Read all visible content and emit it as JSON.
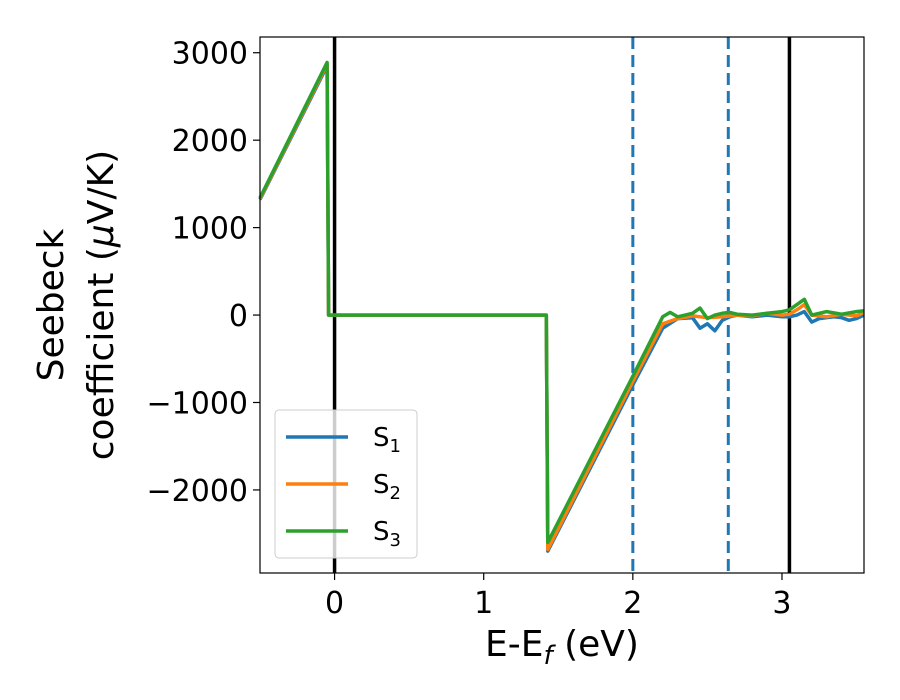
{
  "chart_data": {
    "type": "line",
    "xlabel": {
      "base": "E-E",
      "sub": "f",
      "tail": " (eV)"
    },
    "ylabel": {
      "line1": "Seebeck",
      "line2_prefix": "coefficient  (",
      "mu": "μ",
      "line2_suffix": "V/K)"
    },
    "xlim": [
      -0.5,
      3.55
    ],
    "ylim": [
      -2950,
      3180
    ],
    "x_ticks": [
      0,
      1,
      2,
      3
    ],
    "y_ticks": [
      -2000,
      -1000,
      0,
      1000,
      2000,
      3000
    ],
    "x_tick_labels": [
      "0",
      "1",
      "2",
      "3"
    ],
    "y_tick_labels": [
      "−2000",
      "−1000",
      "0",
      "1000",
      "2000",
      "3000"
    ],
    "grid": false,
    "legend_position": "lower-left",
    "vertical_lines": [
      {
        "x": 0.0,
        "style": "solid",
        "color": "#000000"
      },
      {
        "x": 3.05,
        "style": "solid",
        "color": "#000000"
      },
      {
        "x": 2.0,
        "style": "dashed",
        "color": "#1f77b4"
      },
      {
        "x": 2.64,
        "style": "dashed",
        "color": "#1f77b4"
      }
    ],
    "series": [
      {
        "name": "S",
        "sub": "1",
        "color": "#1f77b4",
        "x": [
          -0.5,
          -0.05,
          -0.04,
          1.42,
          1.43,
          2.0,
          2.2,
          2.3,
          2.4,
          2.45,
          2.5,
          2.55,
          2.6,
          2.65,
          2.7,
          2.8,
          2.9,
          3.0,
          3.05,
          3.1,
          3.15,
          3.2,
          3.25,
          3.3,
          3.35,
          3.4,
          3.45,
          3.5,
          3.55
        ],
        "y": [
          1320,
          2850,
          0,
          0,
          -2700,
          -800,
          -150,
          -40,
          -30,
          -150,
          -100,
          -180,
          -60,
          -20,
          0,
          -20,
          0,
          -20,
          -20,
          0,
          40,
          -80,
          -40,
          -30,
          -20,
          -30,
          -60,
          -40,
          0
        ]
      },
      {
        "name": "S",
        "sub": "2",
        "color": "#ff7f0e",
        "x": [
          -0.5,
          -0.05,
          -0.04,
          1.42,
          1.43,
          2.0,
          2.2,
          2.3,
          2.4,
          2.5,
          2.6,
          2.7,
          2.8,
          2.9,
          3.0,
          3.05,
          3.1,
          3.15,
          3.2,
          3.3,
          3.4,
          3.5,
          3.55
        ],
        "y": [
          1330,
          2870,
          0,
          0,
          -2680,
          -760,
          -100,
          -40,
          -10,
          -30,
          -20,
          0,
          -10,
          20,
          0,
          10,
          60,
          120,
          0,
          -20,
          10,
          -10,
          30
        ]
      },
      {
        "name": "S",
        "sub": "3",
        "color": "#2ca02c",
        "x": [
          -0.5,
          -0.05,
          -0.04,
          1.42,
          1.43,
          2.0,
          2.2,
          2.25,
          2.3,
          2.4,
          2.45,
          2.5,
          2.55,
          2.6,
          2.65,
          2.7,
          2.8,
          2.9,
          3.0,
          3.05,
          3.1,
          3.15,
          3.2,
          3.3,
          3.4,
          3.5,
          3.55
        ],
        "y": [
          1340,
          2890,
          0,
          0,
          -2600,
          -700,
          -20,
          30,
          -20,
          20,
          80,
          -40,
          0,
          20,
          30,
          10,
          0,
          20,
          40,
          60,
          120,
          180,
          0,
          40,
          10,
          40,
          50
        ]
      }
    ]
  }
}
